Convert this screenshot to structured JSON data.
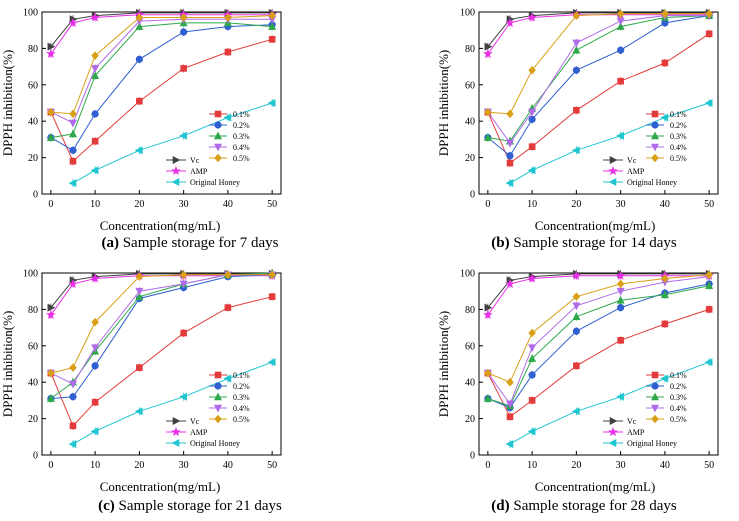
{
  "figure": {
    "colors": {
      "Vc": "#404040",
      "AMP": "#e830e8",
      "0.1%": "#e33b3b",
      "0.2%": "#2f5fd1",
      "0.3%": "#2ea84a",
      "0.4%": "#b06be8",
      "0.5%": "#d9a017",
      "Original Honey": "#1fc5cf"
    },
    "markers": {
      "Vc": "tri-right",
      "AMP": "star",
      "0.1%": "square",
      "0.2%": "circle",
      "0.3%": "tri-up",
      "0.4%": "tri-down",
      "0.5%": "diamond",
      "Original Honey": "tri-left"
    }
  },
  "chart_data": [
    {
      "type": "line",
      "panel_letter": "(a)",
      "caption": " Sample storage for 7 days",
      "xlabel": "Concentration(mg/mL)",
      "ylabel": "DPPH inhibition(%)",
      "x": [
        0,
        5,
        10,
        20,
        30,
        40,
        50
      ],
      "xticks": [
        "0",
        "10",
        "20",
        "30",
        "40",
        "50"
      ],
      "yticks": [
        "0",
        "20",
        "40",
        "60",
        "80",
        "100"
      ],
      "xlim": [
        -2,
        52
      ],
      "ylim": [
        0,
        100
      ],
      "series": [
        {
          "name": "Vc",
          "values": [
            81,
            96,
            98,
            99.5,
            99.5,
            99.5,
            99.5
          ]
        },
        {
          "name": "AMP",
          "values": [
            77,
            94,
            97,
            98.5,
            98.5,
            98.5,
            98.5
          ]
        },
        {
          "name": "0.1%",
          "values": [
            45,
            18,
            29,
            51,
            69,
            78,
            85
          ]
        },
        {
          "name": "0.2%",
          "values": [
            31,
            24,
            44,
            74,
            89,
            92,
            93
          ]
        },
        {
          "name": "0.3%",
          "values": [
            31,
            33,
            65,
            92,
            94,
            94,
            92
          ]
        },
        {
          "name": "0.4%",
          "values": [
            45,
            39,
            69,
            95,
            96,
            96,
            96
          ]
        },
        {
          "name": "0.5%",
          "values": [
            45,
            44,
            76,
            97,
            97,
            97,
            98
          ]
        },
        {
          "name": "Original Honey",
          "values": [
            null,
            6,
            13,
            24,
            32,
            42,
            50
          ]
        }
      ]
    },
    {
      "type": "line",
      "panel_letter": "(b)",
      "caption": " Sample storage for 14 days",
      "xlabel": "Concentration(mg/mL)",
      "ylabel": "DPPH inhibition(%)",
      "x": [
        0,
        5,
        10,
        20,
        30,
        40,
        50
      ],
      "xticks": [
        "0",
        "10",
        "20",
        "30",
        "40",
        "50"
      ],
      "yticks": [
        "0",
        "20",
        "40",
        "60",
        "80",
        "100"
      ],
      "xlim": [
        -2,
        52
      ],
      "ylim": [
        0,
        100
      ],
      "series": [
        {
          "name": "Vc",
          "values": [
            81,
            96,
            98,
            99.5,
            99.5,
            99.5,
            99.5
          ]
        },
        {
          "name": "AMP",
          "values": [
            77,
            94,
            97,
            98.5,
            98.5,
            98.5,
            98.5
          ]
        },
        {
          "name": "0.1%",
          "values": [
            45,
            17,
            26,
            46,
            62,
            72,
            88
          ]
        },
        {
          "name": "0.2%",
          "values": [
            31,
            21,
            41,
            68,
            79,
            94,
            98
          ]
        },
        {
          "name": "0.3%",
          "values": [
            31,
            29,
            47,
            79,
            92,
            97,
            98
          ]
        },
        {
          "name": "0.4%",
          "values": [
            45,
            28,
            45,
            83,
            95,
            98,
            98
          ]
        },
        {
          "name": "0.5%",
          "values": [
            45,
            44,
            68,
            98,
            99,
            99,
            99
          ]
        },
        {
          "name": "Original Honey",
          "values": [
            null,
            6,
            13,
            24,
            32,
            42,
            50
          ]
        }
      ]
    },
    {
      "type": "line",
      "panel_letter": "(c)",
      "caption": " Sample storage for 21 days",
      "xlabel": "Concentration(mg/mL)",
      "ylabel": "DPPH inhibition(%)",
      "x": [
        0,
        5,
        10,
        20,
        30,
        40,
        50
      ],
      "xticks": [
        "0",
        "10",
        "20",
        "30",
        "40",
        "50"
      ],
      "yticks": [
        "0",
        "20",
        "40",
        "60",
        "80",
        "100"
      ],
      "xlim": [
        -2,
        52
      ],
      "ylim": [
        0,
        100
      ],
      "series": [
        {
          "name": "Vc",
          "values": [
            81,
            96,
            98,
            99.5,
            99.5,
            99.5,
            99.5
          ]
        },
        {
          "name": "AMP",
          "values": [
            77,
            94,
            97,
            98.5,
            98.5,
            98.5,
            98.5
          ]
        },
        {
          "name": "0.1%",
          "values": [
            45,
            16,
            29,
            48,
            67,
            81,
            87
          ]
        },
        {
          "name": "0.2%",
          "values": [
            31,
            32,
            49,
            86,
            92,
            98,
            99
          ]
        },
        {
          "name": "0.3%",
          "values": [
            31,
            40,
            57,
            87,
            94,
            99,
            100
          ]
        },
        {
          "name": "0.4%",
          "values": [
            45,
            39,
            59,
            90,
            94,
            99,
            99
          ]
        },
        {
          "name": "0.5%",
          "values": [
            45,
            48,
            73,
            98,
            99,
            99,
            99
          ]
        },
        {
          "name": "Original Honey",
          "values": [
            null,
            6,
            13,
            24,
            32,
            42,
            51
          ]
        }
      ]
    },
    {
      "type": "line",
      "panel_letter": "(d)",
      "caption": " Sample storage for 28 days",
      "xlabel": "Concentration(mg/mL)",
      "ylabel": "DPPH inhibition(%)",
      "x": [
        0,
        5,
        10,
        20,
        30,
        40,
        50
      ],
      "xticks": [
        "0",
        "10",
        "20",
        "30",
        "40",
        "50"
      ],
      "yticks": [
        "0",
        "20",
        "40",
        "60",
        "80",
        "100"
      ],
      "xlim": [
        -2,
        52
      ],
      "ylim": [
        0,
        100
      ],
      "series": [
        {
          "name": "Vc",
          "values": [
            81,
            96,
            98,
            99.5,
            99.5,
            99.5,
            99.5
          ]
        },
        {
          "name": "AMP",
          "values": [
            77,
            94,
            97,
            98.5,
            98.5,
            98.5,
            98.5
          ]
        },
        {
          "name": "0.1%",
          "values": [
            45,
            21,
            30,
            49,
            63,
            72,
            80
          ]
        },
        {
          "name": "0.2%",
          "values": [
            31,
            26,
            44,
            68,
            81,
            89,
            94
          ]
        },
        {
          "name": "0.3%",
          "values": [
            31,
            27,
            53,
            76,
            85,
            88,
            93
          ]
        },
        {
          "name": "0.4%",
          "values": [
            45,
            28,
            59,
            82,
            90,
            95,
            98
          ]
        },
        {
          "name": "0.5%",
          "values": [
            45,
            40,
            67,
            87,
            94,
            97,
            99
          ]
        },
        {
          "name": "Original Honey",
          "values": [
            null,
            6,
            13,
            24,
            32,
            42,
            51
          ]
        }
      ]
    }
  ]
}
